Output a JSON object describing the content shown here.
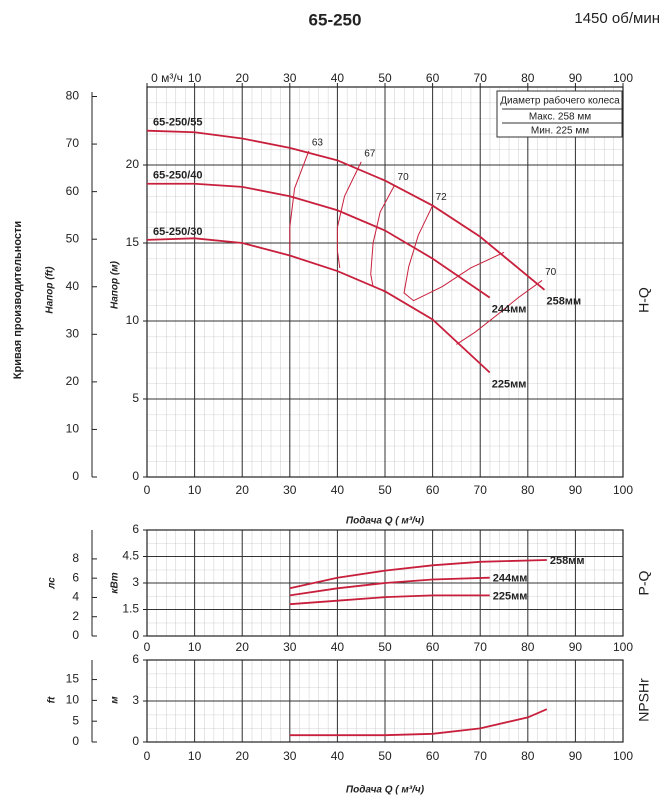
{
  "header": {
    "title": "65-250",
    "speed": "1450 об/мин",
    "legend_box": {
      "title": "Диаметр рабочего колеса",
      "max": "Макс. 258 мм",
      "min": "Мин.  225 мм"
    }
  },
  "chart_data": [
    {
      "type": "line",
      "side_label": "Кривая производительности",
      "curve_label": "H-Q",
      "ylabel": "Напор (м)",
      "y2label": "Напор (ft)",
      "xlabel": "Подача Q ( м³/ч)",
      "xlim": [
        0,
        100
      ],
      "xticks": [
        0,
        10,
        20,
        30,
        40,
        50,
        60,
        70,
        80,
        90,
        100
      ],
      "x2ticks": [
        {
          "value": 0,
          "label": "0 м³/ч"
        },
        10,
        20,
        30,
        40,
        50,
        60,
        70,
        80,
        90,
        100
      ],
      "ylim": [
        0,
        25
      ],
      "yticks": [
        0,
        5,
        10,
        15,
        20
      ],
      "y2lim": [
        0,
        82
      ],
      "y2ticks": [
        0,
        10,
        20,
        30,
        40,
        50,
        60,
        70,
        80
      ],
      "grid": true,
      "series": [
        {
          "name": "258мм",
          "model": "65-250/55",
          "color": "#c8203c",
          "x": [
            0,
            10,
            20,
            30,
            40,
            50,
            60,
            70,
            83.5
          ],
          "values": [
            22.2,
            22.1,
            21.7,
            21.1,
            20.3,
            19.0,
            17.4,
            15.4,
            12.0
          ]
        },
        {
          "name": "244мм",
          "model": "65-250/40",
          "color": "#c8203c",
          "x": [
            0,
            10,
            20,
            30,
            40,
            50,
            60,
            72
          ],
          "values": [
            18.8,
            18.8,
            18.6,
            18.0,
            17.1,
            15.8,
            14.0,
            11.5
          ]
        },
        {
          "name": "225мм",
          "model": "65-250/30",
          "color": "#c8203c",
          "x": [
            0,
            10,
            20,
            30,
            40,
            50,
            60,
            72
          ],
          "values": [
            15.2,
            15.3,
            15.0,
            14.2,
            13.2,
            11.9,
            10.1,
            6.7
          ]
        }
      ],
      "efficiency_curves": [
        {
          "name": "63",
          "color": "#c8203c",
          "x": [
            34,
            31,
            30,
            30
          ],
          "values": [
            20.9,
            18.5,
            16,
            14.5
          ]
        },
        {
          "name": "67",
          "color": "#c8203c",
          "x": [
            45,
            41.5,
            40,
            40,
            40.5
          ],
          "values": [
            20.2,
            18,
            16,
            14.5,
            13.4
          ]
        },
        {
          "name": "70",
          "color": "#c8203c",
          "x": [
            52,
            49,
            47.5,
            47,
            47.5
          ],
          "values": [
            18.7,
            17,
            15,
            13,
            12.2
          ]
        },
        {
          "name": "72",
          "color": "#c8203c",
          "x": [
            60,
            57,
            55,
            54,
            56,
            62,
            68,
            75
          ],
          "values": [
            17.4,
            15.5,
            13.5,
            11.8,
            11.3,
            12.2,
            13.4,
            14.4
          ]
        },
        {
          "name": "70",
          "color": "#c8203c",
          "x": [
            83,
            78,
            74,
            69,
            65
          ],
          "values": [
            12.6,
            11.5,
            10.5,
            9.3,
            8.5
          ]
        }
      ]
    },
    {
      "type": "line",
      "curve_label": "P-Q",
      "ylabel": "кВт",
      "y2label": "лс",
      "xlim": [
        0,
        100
      ],
      "xticks": [
        0,
        10,
        20,
        30,
        40,
        50,
        60,
        70,
        80,
        90,
        100
      ],
      "ylim": [
        0,
        6
      ],
      "yticks": [
        0,
        1.5,
        3,
        4.5,
        6
      ],
      "y2lim": [
        0,
        11
      ],
      "y2ticks": [
        0,
        2,
        4,
        6,
        8
      ],
      "grid": true,
      "series": [
        {
          "name": "258мм",
          "color": "#c8203c",
          "x": [
            30,
            40,
            50,
            60,
            70,
            84
          ],
          "values": [
            2.7,
            3.3,
            3.7,
            4.0,
            4.2,
            4.3
          ]
        },
        {
          "name": "244мм",
          "color": "#c8203c",
          "x": [
            30,
            40,
            50,
            60,
            72
          ],
          "values": [
            2.3,
            2.7,
            3.0,
            3.2,
            3.3
          ]
        },
        {
          "name": "225мм",
          "color": "#c8203c",
          "x": [
            30,
            40,
            50,
            60,
            72
          ],
          "values": [
            1.8,
            2.0,
            2.2,
            2.3,
            2.3
          ]
        }
      ]
    },
    {
      "type": "line",
      "curve_label": "NPSHr",
      "ylabel": "м",
      "y2label": "ft",
      "xlabel": "Подача Q ( м³/ч)",
      "xlim": [
        0,
        100
      ],
      "xticks": [
        0,
        10,
        20,
        30,
        40,
        50,
        60,
        70,
        80,
        90,
        100
      ],
      "ylim": [
        0,
        6
      ],
      "yticks": [
        0,
        3,
        6
      ],
      "y2lim": [
        0,
        19.7
      ],
      "y2ticks": [
        0,
        5,
        10,
        15
      ],
      "grid": true,
      "series": [
        {
          "color": "#c8203c",
          "x": [
            30,
            40,
            50,
            60,
            70,
            80,
            84
          ],
          "values": [
            0.5,
            0.5,
            0.5,
            0.6,
            1.0,
            1.8,
            2.4
          ]
        }
      ]
    }
  ]
}
